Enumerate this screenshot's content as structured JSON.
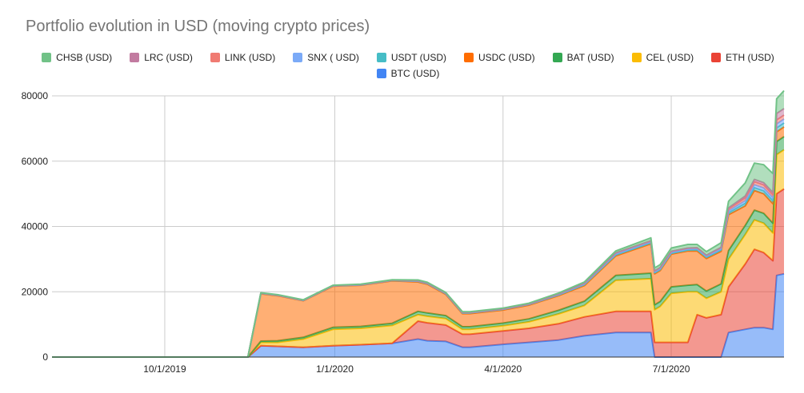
{
  "chart_data": {
    "type": "area",
    "stacked": true,
    "title": "Portfolio evolution in USD (moving crypto prices)",
    "xlabel": "",
    "ylabel": "",
    "ylim": [
      0,
      80000
    ],
    "yticks": [
      "0",
      "20000",
      "40000",
      "60000",
      "80000"
    ],
    "xticks": [
      "10/1/2019",
      "1/1/2020",
      "4/1/2020",
      "7/1/2020"
    ],
    "xlim": [
      "2019-08-01",
      "2020-08-31"
    ],
    "grid": true,
    "legend_position": "top",
    "x": [
      "2019-08-01",
      "2019-11-15",
      "2019-11-22",
      "2019-12-01",
      "2019-12-15",
      "2019-12-31",
      "2020-01-15",
      "2020-02-01",
      "2020-02-15",
      "2020-02-20",
      "2020-03-01",
      "2020-03-10",
      "2020-03-14",
      "2020-04-01",
      "2020-04-15",
      "2020-05-01",
      "2020-05-15",
      "2020-06-01",
      "2020-06-20",
      "2020-06-22",
      "2020-06-25",
      "2020-07-01",
      "2020-07-10",
      "2020-07-15",
      "2020-07-20",
      "2020-07-28",
      "2020-08-01",
      "2020-08-10",
      "2020-08-15",
      "2020-08-20",
      "2020-08-25",
      "2020-08-27",
      "2020-08-31"
    ],
    "series": [
      {
        "name": "BTC (USD)",
        "color": "#4285f4",
        "values": [
          0,
          0,
          3500,
          3300,
          3000,
          3500,
          3800,
          4200,
          5500,
          5000,
          4800,
          3000,
          3000,
          3900,
          4500,
          5200,
          6500,
          7500,
          7500,
          0,
          0,
          0,
          0,
          0,
          0,
          0,
          7500,
          8500,
          9000,
          9000,
          8500,
          25000,
          25500
        ]
      },
      {
        "name": "ETH (USD)",
        "color": "#ea4335",
        "values": [
          0,
          0,
          0,
          0,
          0,
          0,
          0,
          0,
          5500,
          5500,
          5000,
          4000,
          4000,
          4100,
          4300,
          5000,
          5800,
          6500,
          6500,
          4500,
          4500,
          4500,
          4500,
          13000,
          12000,
          13000,
          14000,
          20000,
          24000,
          23000,
          21000,
          25000,
          26000
        ]
      },
      {
        "name": "CEL (USD)",
        "color": "#fbbc04",
        "values": [
          0,
          0,
          1000,
          1200,
          2500,
          5000,
          5000,
          5500,
          2000,
          2000,
          2000,
          1500,
          1500,
          1600,
          2000,
          3000,
          3500,
          9500,
          10000,
          10000,
          11000,
          15000,
          15500,
          7000,
          6000,
          7000,
          8500,
          9000,
          9000,
          9000,
          8500,
          12000,
          12000
        ]
      },
      {
        "name": "BAT (USD)",
        "color": "#34a853",
        "values": [
          0,
          0,
          400,
          500,
          550,
          600,
          600,
          650,
          1000,
          1000,
          900,
          800,
          800,
          800,
          900,
          1100,
          1300,
          1500,
          1700,
          1500,
          1500,
          2000,
          2000,
          2200,
          2200,
          2400,
          2600,
          2800,
          3000,
          3000,
          3000,
          4000,
          4000
        ]
      },
      {
        "name": "USDC (USD)",
        "color": "#ff6d01",
        "values": [
          0,
          0,
          14500,
          13800,
          11200,
          12600,
          12600,
          13000,
          9000,
          8800,
          6500,
          4000,
          4000,
          4000,
          4200,
          4500,
          4800,
          6000,
          9000,
          9500,
          9500,
          10000,
          10500,
          10300,
          10000,
          10000,
          11000,
          6000,
          6000,
          6000,
          6000,
          3000,
          3000
        ]
      },
      {
        "name": "USDT (USD)",
        "color": "#46bdc6",
        "values": [
          0,
          0,
          100,
          100,
          100,
          100,
          100,
          100,
          200,
          200,
          200,
          200,
          200,
          200,
          200,
          200,
          300,
          300,
          300,
          300,
          300,
          300,
          300,
          400,
          400,
          400,
          600,
          800,
          900,
          900,
          900,
          1200,
          1200
        ]
      },
      {
        "name": "SNX ( USD)",
        "color": "#7baaf7",
        "values": [
          0,
          0,
          50,
          50,
          50,
          50,
          50,
          50,
          100,
          100,
          100,
          100,
          100,
          100,
          100,
          150,
          200,
          300,
          300,
          300,
          300,
          300,
          300,
          300,
          300,
          400,
          600,
          800,
          900,
          900,
          900,
          1200,
          1200
        ]
      },
      {
        "name": "LINK (USD)",
        "color": "#f07b72",
        "values": [
          0,
          0,
          50,
          50,
          50,
          50,
          50,
          50,
          100,
          100,
          100,
          100,
          100,
          100,
          100,
          150,
          200,
          300,
          300,
          300,
          300,
          300,
          300,
          300,
          300,
          400,
          600,
          800,
          900,
          900,
          900,
          1200,
          1200
        ]
      },
      {
        "name": "LRC (USD)",
        "color": "#c27ba0",
        "values": [
          0,
          0,
          0,
          0,
          0,
          0,
          0,
          0,
          0,
          0,
          0,
          0,
          0,
          0,
          0,
          0,
          0,
          0,
          0,
          0,
          0,
          0,
          0,
          0,
          0,
          0,
          300,
          600,
          700,
          700,
          700,
          2000,
          2000
        ]
      },
      {
        "name": "CHSB (USD)",
        "color": "#71c287",
        "values": [
          0,
          0,
          100,
          100,
          100,
          100,
          100,
          100,
          200,
          200,
          200,
          200,
          200,
          200,
          200,
          300,
          400,
          600,
          900,
          900,
          900,
          1000,
          1100,
          1000,
          1100,
          1400,
          2000,
          4000,
          5000,
          5500,
          5800,
          4500,
          5500
        ]
      }
    ]
  },
  "legend": {
    "row1": [
      {
        "label": "CHSB (USD)",
        "color": "#71c287"
      },
      {
        "label": "LRC (USD)",
        "color": "#c27ba0"
      },
      {
        "label": "LINK (USD)",
        "color": "#f07b72"
      },
      {
        "label": "SNX ( USD)",
        "color": "#7baaf7"
      },
      {
        "label": "USDT (USD)",
        "color": "#46bdc6"
      },
      {
        "label": "USDC (USD)",
        "color": "#ff6d01"
      },
      {
        "label": "BAT (USD)",
        "color": "#34a853"
      },
      {
        "label": "CEL (USD)",
        "color": "#fbbc04"
      },
      {
        "label": "ETH (USD)",
        "color": "#ea4335"
      }
    ],
    "row2": [
      {
        "label": "BTC (USD)",
        "color": "#4285f4"
      }
    ]
  }
}
